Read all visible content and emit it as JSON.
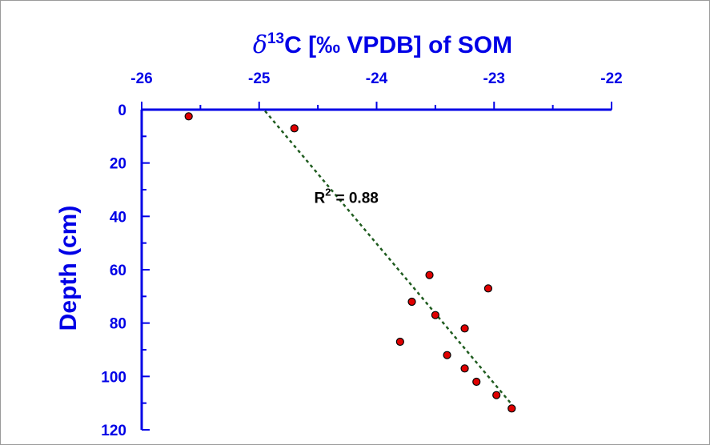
{
  "colors": {
    "axis": "#0000e6",
    "point_fill": "#e00000",
    "point_stroke": "#000000",
    "trendline": "#1f5c1f"
  },
  "chart_data": {
    "type": "scatter",
    "title": "",
    "xlabel": {
      "delta": "δ",
      "superscript": "13",
      "rest": "C [‰ VPDB] of SOM"
    },
    "ylabel": "Depth (cm)",
    "x_axis_position": "top",
    "y_axis_inverted": true,
    "xlim": [
      -26,
      -22
    ],
    "ylim": [
      0,
      120
    ],
    "x_ticks": [
      -26,
      -25,
      -24,
      -23,
      -22
    ],
    "y_ticks": [
      0,
      20,
      40,
      60,
      80,
      100,
      120
    ],
    "x_tick_labels": [
      "-26",
      "-25",
      "-24",
      "-23",
      "-22"
    ],
    "y_tick_labels": [
      "0",
      "20",
      "40",
      "60",
      "80",
      "100",
      "120"
    ],
    "grid": false,
    "series": [
      {
        "points": [
          {
            "x": -25.6,
            "y": 2.5
          },
          {
            "x": -24.7,
            "y": 7
          },
          {
            "x": -23.55,
            "y": 62
          },
          {
            "x": -23.05,
            "y": 67
          },
          {
            "x": -23.7,
            "y": 72
          },
          {
            "x": -23.5,
            "y": 77
          },
          {
            "x": -23.25,
            "y": 82
          },
          {
            "x": -23.8,
            "y": 87
          },
          {
            "x": -23.4,
            "y": 92
          },
          {
            "x": -23.25,
            "y": 97
          },
          {
            "x": -23.15,
            "y": 102
          },
          {
            "x": -22.98,
            "y": 107
          },
          {
            "x": -22.85,
            "y": 112
          }
        ]
      }
    ],
    "trendline": {
      "style": "dotted",
      "from": {
        "x": -24.95,
        "y": 0.5
      },
      "to": {
        "x": -22.83,
        "y": 111.5
      }
    },
    "annotation": {
      "label": "R",
      "superscript": "2",
      "value_text": "= 0.88",
      "at": {
        "x": -24.0,
        "y": 32
      }
    }
  }
}
